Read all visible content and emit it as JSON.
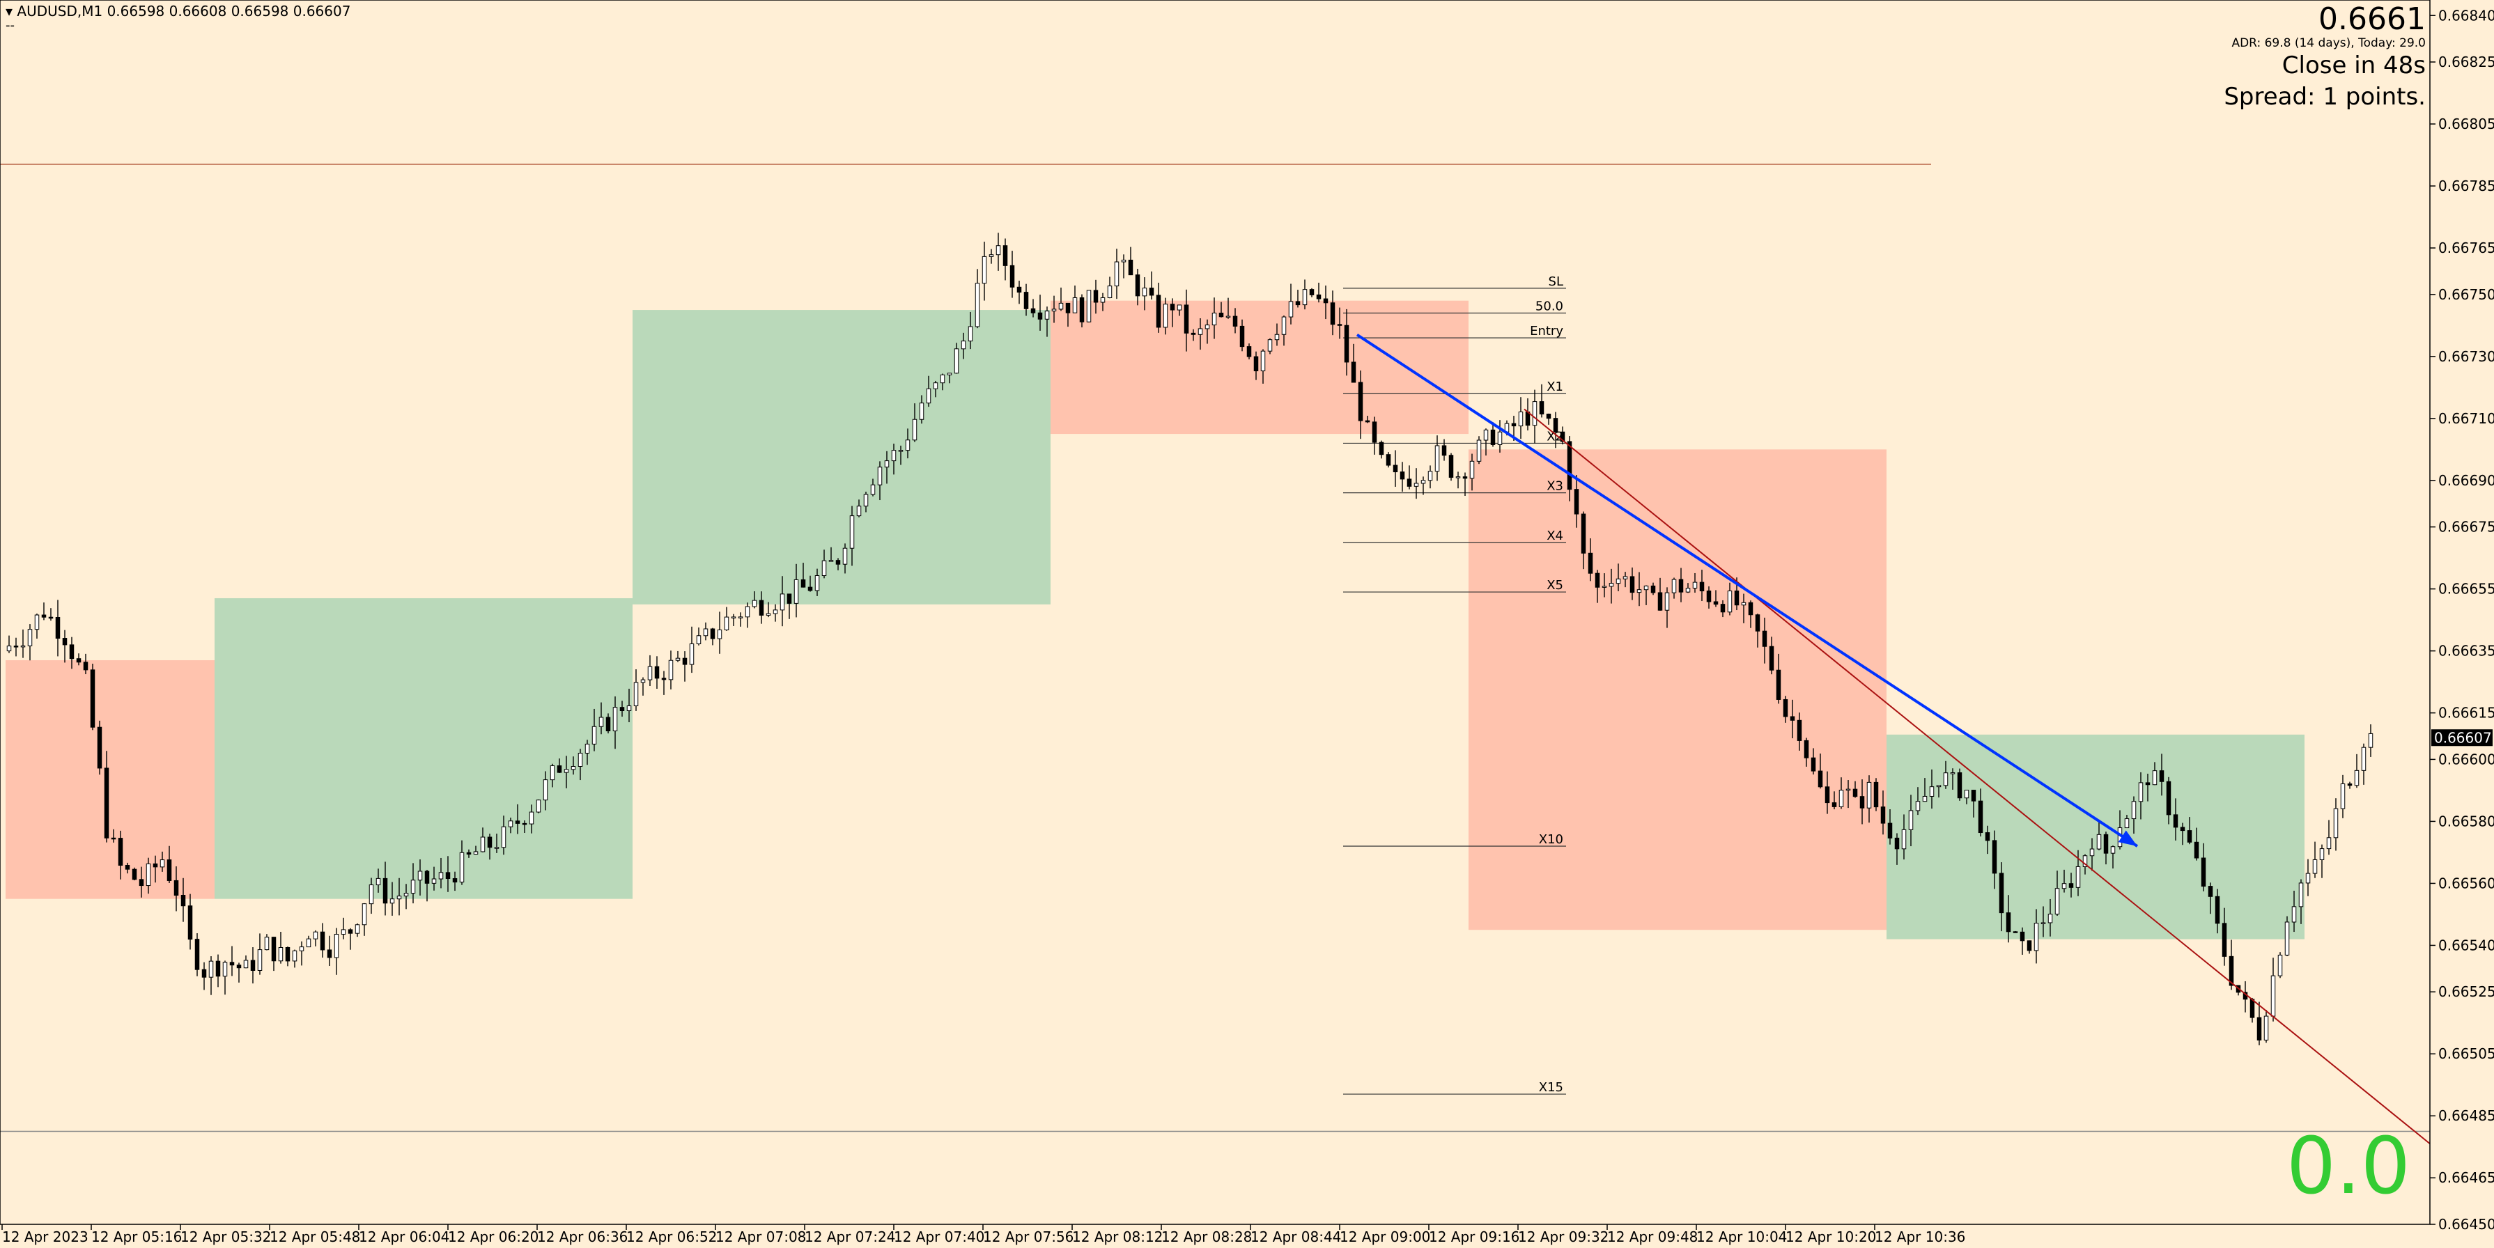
{
  "header": {
    "symbol": "AUDUSD,M1",
    "ohlc": "0.66598 0.66608 0.66598 0.66607",
    "subline": "--"
  },
  "info_panel": {
    "bid_price": "0.6661",
    "adr_text": "ADR: 69.8 (14 days), Today: 29.0",
    "close_text": "Close in 48s",
    "spread_text": "Spread: 1 points.",
    "pnl_text": "0.0",
    "pnl_color": "#33CC33"
  },
  "colors": {
    "background": "#FFEFD6",
    "bullish_zone": "#BAD9BA",
    "bearish_zone": "#FFC3AE",
    "bearish_zone_light": "#FFC7B4",
    "candle_fill": "#FFFFFF",
    "candle_line": "#000000",
    "trend_arrow": "#0033FF",
    "trend_line": "#AA1111",
    "level_line": "#B35A3C",
    "level_line_bottom": "#888888"
  },
  "chart_data": {
    "type": "candlestick",
    "symbol": "AUDUSD",
    "timeframe": "M1",
    "ylim": [
      0.6645,
      0.66845
    ],
    "y_ticks": [
      "0.66840",
      "0.66825",
      "0.66805",
      "0.66785",
      "0.66765",
      "0.66750",
      "0.66730",
      "0.66710",
      "0.66690",
      "0.66675",
      "0.66655",
      "0.66635",
      "0.66615",
      "0.66600",
      "0.66580",
      "0.66560",
      "0.66540",
      "0.66525",
      "0.66505",
      "0.66485",
      "0.66465",
      "0.66450"
    ],
    "x_ticks": [
      "12 Apr 2023",
      "12 Apr 05:16",
      "12 Apr 05:32",
      "12 Apr 05:48",
      "12 Apr 06:04",
      "12 Apr 06:20",
      "12 Apr 06:36",
      "12 Apr 06:52",
      "12 Apr 07:08",
      "12 Apr 07:24",
      "12 Apr 07:40",
      "12 Apr 07:56",
      "12 Apr 08:12",
      "12 Apr 08:28",
      "12 Apr 08:44",
      "12 Apr 09:00",
      "12 Apr 09:16",
      "12 Apr 09:32",
      "12 Apr 09:48",
      "12 Apr 10:04",
      "12 Apr 10:20",
      "12 Apr 10:36"
    ],
    "x_start": "12 Apr 05:00",
    "x_end": "12 Apr 10:48",
    "current_price": "0.66607",
    "price_path": [
      [
        "05:00",
        0.66635
      ],
      [
        "05:03",
        0.6664
      ],
      [
        "05:06",
        0.66648
      ],
      [
        "05:09",
        0.6664
      ],
      [
        "05:12",
        0.66625
      ],
      [
        "05:14",
        0.66595
      ],
      [
        "05:15",
        0.66578
      ],
      [
        "05:17",
        0.66565
      ],
      [
        "05:20",
        0.6656
      ],
      [
        "05:23",
        0.66568
      ],
      [
        "05:25",
        0.66558
      ],
      [
        "05:27",
        0.6654
      ],
      [
        "05:29",
        0.66532
      ],
      [
        "05:32",
        0.66535
      ],
      [
        "05:35",
        0.66532
      ],
      [
        "05:38",
        0.6654
      ],
      [
        "05:41",
        0.66535
      ],
      [
        "05:44",
        0.66545
      ],
      [
        "05:47",
        0.6654
      ],
      [
        "05:50",
        0.66545
      ],
      [
        "05:53",
        0.6656
      ],
      [
        "05:56",
        0.66555
      ],
      [
        "06:00",
        0.6656
      ],
      [
        "06:04",
        0.66562
      ],
      [
        "06:08",
        0.6657
      ],
      [
        "06:12",
        0.66575
      ],
      [
        "06:16",
        0.66585
      ],
      [
        "06:20",
        0.66598
      ],
      [
        "06:24",
        0.66605
      ],
      [
        "06:28",
        0.66615
      ],
      [
        "06:32",
        0.66625
      ],
      [
        "06:36",
        0.6663
      ],
      [
        "06:40",
        0.66637
      ],
      [
        "06:44",
        0.66645
      ],
      [
        "06:48",
        0.6665
      ],
      [
        "06:52",
        0.66652
      ],
      [
        "06:56",
        0.66656
      ],
      [
        "07:00",
        0.66665
      ],
      [
        "07:03",
        0.66685
      ],
      [
        "07:06",
        0.66695
      ],
      [
        "07:09",
        0.667
      ],
      [
        "07:12",
        0.66715
      ],
      [
        "07:15",
        0.66722
      ],
      [
        "07:18",
        0.66735
      ],
      [
        "07:20",
        0.66752
      ],
      [
        "07:22",
        0.66765
      ],
      [
        "07:24",
        0.6676
      ],
      [
        "07:26",
        0.6675
      ],
      [
        "07:29",
        0.66746
      ],
      [
        "07:32",
        0.66748
      ],
      [
        "07:35",
        0.66745
      ],
      [
        "07:38",
        0.66752
      ],
      [
        "07:40",
        0.6676
      ],
      [
        "07:42",
        0.66755
      ],
      [
        "07:44",
        0.6675
      ],
      [
        "07:46",
        0.66742
      ],
      [
        "07:48",
        0.66747
      ],
      [
        "07:51",
        0.66735
      ],
      [
        "07:54",
        0.66742
      ],
      [
        "07:57",
        0.6674
      ],
      [
        "08:00",
        0.66728
      ],
      [
        "08:02",
        0.66738
      ],
      [
        "08:05",
        0.66745
      ],
      [
        "08:08",
        0.6675
      ],
      [
        "08:10",
        0.66745
      ],
      [
        "08:12",
        0.66738
      ],
      [
        "08:14",
        0.6672
      ],
      [
        "08:16",
        0.66705
      ],
      [
        "08:18",
        0.66695
      ],
      [
        "08:20",
        0.6669
      ],
      [
        "08:23",
        0.66692
      ],
      [
        "08:26",
        0.66698
      ],
      [
        "08:29",
        0.66692
      ],
      [
        "08:32",
        0.667
      ],
      [
        "08:34",
        0.66705
      ],
      [
        "08:36",
        0.66705
      ],
      [
        "08:38",
        0.6671
      ],
      [
        "08:40",
        0.66712
      ],
      [
        "08:42",
        0.66708
      ],
      [
        "08:44",
        0.66702
      ],
      [
        "08:45",
        0.6669
      ],
      [
        "08:47",
        0.66665
      ],
      [
        "08:49",
        0.66655
      ],
      [
        "08:51",
        0.6666
      ],
      [
        "08:53",
        0.66658
      ],
      [
        "08:55",
        0.66655
      ],
      [
        "08:57",
        0.6665
      ],
      [
        "09:00",
        0.66656
      ],
      [
        "09:03",
        0.66655
      ],
      [
        "09:06",
        0.66652
      ],
      [
        "09:09",
        0.6665
      ],
      [
        "09:12",
        0.6664
      ],
      [
        "09:14",
        0.6663
      ],
      [
        "09:16",
        0.66615
      ],
      [
        "09:18",
        0.6661
      ],
      [
        "09:20",
        0.66595
      ],
      [
        "09:22",
        0.66585
      ],
      [
        "09:24",
        0.66592
      ],
      [
        "09:26",
        0.66585
      ],
      [
        "09:28",
        0.6659
      ],
      [
        "09:30",
        0.6658
      ],
      [
        "09:32",
        0.66575
      ],
      [
        "09:34",
        0.6658
      ],
      [
        "09:36",
        0.66588
      ],
      [
        "09:38",
        0.66595
      ],
      [
        "09:40",
        0.66592
      ],
      [
        "09:42",
        0.6659
      ],
      [
        "09:44",
        0.6658
      ],
      [
        "09:46",
        0.6656
      ],
      [
        "09:48",
        0.66545
      ],
      [
        "09:50",
        0.66538
      ],
      [
        "09:52",
        0.66545
      ],
      [
        "09:54",
        0.66552
      ],
      [
        "09:56",
        0.66558
      ],
      [
        "09:58",
        0.66565
      ],
      [
        "10:00",
        0.66575
      ],
      [
        "10:02",
        0.6657
      ],
      [
        "10:04",
        0.6658
      ],
      [
        "10:06",
        0.66585
      ],
      [
        "10:08",
        0.66595
      ],
      [
        "10:10",
        0.6659
      ],
      [
        "10:12",
        0.6658
      ],
      [
        "10:14",
        0.66572
      ],
      [
        "10:16",
        0.6656
      ],
      [
        "10:18",
        0.66545
      ],
      [
        "10:20",
        0.6653
      ],
      [
        "10:22",
        0.6652
      ],
      [
        "10:24",
        0.66512
      ],
      [
        "10:26",
        0.6653
      ],
      [
        "10:28",
        0.6655
      ],
      [
        "10:30",
        0.6656
      ],
      [
        "10:32",
        0.66565
      ],
      [
        "10:34",
        0.66575
      ],
      [
        "10:36",
        0.6659
      ],
      [
        "10:38",
        0.666
      ],
      [
        "10:39",
        0.66607
      ]
    ],
    "session_zones": [
      {
        "type": "bearish",
        "start": "05:00",
        "end": "05:30",
        "high": 0.66632,
        "low": 0.66555
      },
      {
        "type": "bullish",
        "start": "05:30",
        "end": "06:30",
        "high": 0.66652,
        "low": 0.66555
      },
      {
        "type": "bullish",
        "start": "06:30",
        "end": "07:30",
        "high": 0.66745,
        "low": 0.6665
      },
      {
        "type": "bearish",
        "start": "07:30",
        "end": "08:30",
        "high": 0.66748,
        "low": 0.66705
      },
      {
        "type": "bearish",
        "start": "08:30",
        "end": "09:30",
        "high": 0.667,
        "low": 0.66545
      },
      {
        "type": "bullish",
        "start": "09:30",
        "end": "10:30",
        "high": 0.66608,
        "low": 0.66542
      }
    ],
    "fib_levels": [
      {
        "label": "SL",
        "price": 0.66752
      },
      {
        "label": "50.0",
        "price": 0.66744
      },
      {
        "label": "Entry",
        "price": 0.66736
      },
      {
        "label": "X1",
        "price": 0.66718
      },
      {
        "label": "X2",
        "price": 0.66702
      },
      {
        "label": "X3",
        "price": 0.66686
      },
      {
        "label": "X4",
        "price": 0.6667
      },
      {
        "label": "X5",
        "price": 0.66654
      },
      {
        "label": "X10",
        "price": 0.66572
      },
      {
        "label": "X15",
        "price": 0.66492
      }
    ],
    "fib_start": "08:12",
    "fib_end": "08:44",
    "horizontal_lines": [
      0.66792,
      0.6648
    ],
    "trend_arrow": {
      "from": [
        "08:14",
        0.66737
      ],
      "to": [
        "10:06",
        0.66572
      ]
    },
    "trend_line": {
      "from": [
        "08:38",
        0.66713
      ],
      "to": [
        "10:48",
        0.66476
      ]
    }
  }
}
